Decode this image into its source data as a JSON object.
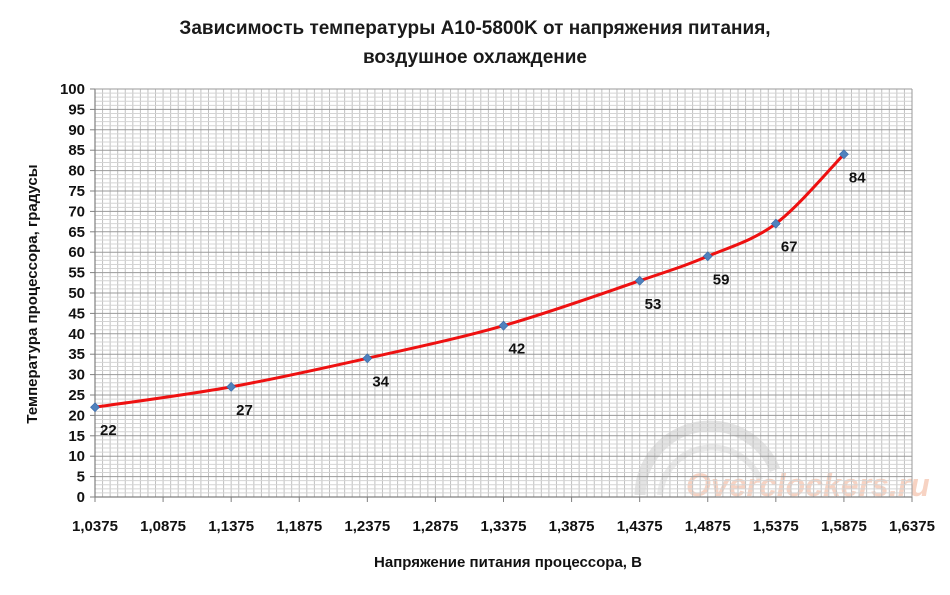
{
  "chart_data": {
    "type": "line",
    "title_line1": "Зависимость температуры A10-5800K от напряжения питания,",
    "title_line2": "воздушное охлаждение",
    "xlabel": "Напряжение питания процессора, В",
    "ylabel": "Температура процессора, градусы",
    "xlim": [
      1.0375,
      1.6375
    ],
    "ylim": [
      0,
      100
    ],
    "x_ticks": [
      1.0375,
      1.0875,
      1.1375,
      1.1875,
      1.2375,
      1.2875,
      1.3375,
      1.3875,
      1.4375,
      1.4875,
      1.5375,
      1.5875,
      1.6375
    ],
    "x_tick_labels": [
      "1,0375",
      "1,0875",
      "1,1375",
      "1,1875",
      "1,2375",
      "1,2875",
      "1,3375",
      "1,3875",
      "1,4375",
      "1,4875",
      "1,5375",
      "1,5875",
      "1,6375"
    ],
    "y_ticks": [
      0,
      5,
      10,
      15,
      20,
      25,
      30,
      35,
      40,
      45,
      50,
      55,
      60,
      65,
      70,
      75,
      80,
      85,
      90,
      95,
      100
    ],
    "grid": true,
    "series": [
      {
        "x": [
          1.0375,
          1.1375,
          1.2375,
          1.3375,
          1.4375,
          1.4875,
          1.5375,
          1.5875
        ],
        "y": [
          22,
          27,
          34,
          42,
          53,
          59,
          67,
          84
        ],
        "labels": [
          "22",
          "27",
          "34",
          "42",
          "53",
          "59",
          "67",
          "84"
        ]
      }
    ],
    "colors": {
      "line": "#ee1111",
      "marker": "#4f81bd",
      "grid": "#c0c0c0"
    }
  },
  "watermark": {
    "text": "Overclockers.ru"
  }
}
